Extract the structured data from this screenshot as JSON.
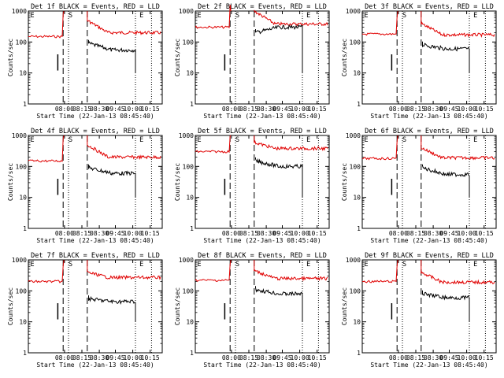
{
  "chart_data": [
    {
      "type": "line",
      "title": "Det 1f BLACK = Events, RED = LLD",
      "ylabel": "Counts/sec",
      "xlabel": "Start Time (22-Jan-13 08:45:40)",
      "yscale": "log",
      "ylim": [
        1,
        1000
      ],
      "xticks": [
        "08:00",
        "08:15",
        "08:30",
        "09:45",
        "10:00",
        "10:15"
      ],
      "yticks": [
        "1",
        "10",
        "100",
        "1000"
      ],
      "markers": [
        "E",
        "S",
        "E"
      ],
      "grid": false,
      "legend": "title",
      "series": [
        {
          "name": "BLACK = Events",
          "color": "#000000",
          "level_after_rise": 90,
          "level_end": 55
        },
        {
          "name": "RED = LLD",
          "color": "#e00000",
          "level_before": 150,
          "level_after_rise": 500,
          "level_end": 200
        }
      ]
    },
    {
      "type": "line",
      "title": "Det 2f BLACK = Events, RED = LLD",
      "ylabel": "Counts/sec",
      "xlabel": "Start Time (22-Jan-13 08:45:40)",
      "yscale": "log",
      "ylim": [
        1,
        1000
      ],
      "xticks": [
        "08:00",
        "08:15",
        "08:30",
        "09:45",
        "10:00",
        "10:15"
      ],
      "yticks": [
        "1",
        "10",
        "100",
        "1000"
      ],
      "markers": [
        "E",
        "S",
        "E"
      ],
      "grid": false,
      "legend": "title",
      "series": [
        {
          "name": "BLACK = Events",
          "color": "#000000",
          "level_after_rise": 200,
          "level_end": 300
        },
        {
          "name": "RED = LLD",
          "color": "#e00000",
          "level_before": 300,
          "level_after_rise": 1000,
          "level_end": 380
        }
      ]
    },
    {
      "type": "line",
      "title": "Det 3f BLACK = Events, RED = LLD",
      "ylabel": "Counts/sec",
      "xlabel": "Start Time (22-Jan-13 08:45:40)",
      "yscale": "log",
      "ylim": [
        1,
        1000
      ],
      "xticks": [
        "08:00",
        "08:15",
        "08:30",
        "09:45",
        "10:00",
        "10:15"
      ],
      "yticks": [
        "1",
        "10",
        "100",
        "1000"
      ],
      "markers": [
        "E",
        "S",
        "E"
      ],
      "grid": false,
      "legend": "title",
      "series": [
        {
          "name": "BLACK = Events",
          "color": "#000000",
          "level_after_rise": 80,
          "level_end": 60
        },
        {
          "name": "RED = LLD",
          "color": "#e00000",
          "level_before": 180,
          "level_after_rise": 400,
          "level_end": 170
        }
      ]
    },
    {
      "type": "line",
      "title": "Det 4f BLACK = Events, RED = LLD",
      "ylabel": "Counts/sec",
      "xlabel": "Start Time (22-Jan-13 08:45:40)",
      "yscale": "log",
      "ylim": [
        1,
        1000
      ],
      "xticks": [
        "08:00",
        "08:15",
        "08:30",
        "09:45",
        "10:00",
        "10:15"
      ],
      "yticks": [
        "1",
        "10",
        "100",
        "1000"
      ],
      "markers": [
        "E",
        "S",
        "E"
      ],
      "grid": false,
      "legend": "title",
      "series": [
        {
          "name": "BLACK = Events",
          "color": "#000000",
          "level_after_rise": 90,
          "level_end": 60
        },
        {
          "name": "RED = LLD",
          "color": "#e00000",
          "level_before": 150,
          "level_after_rise": 500,
          "level_end": 200
        }
      ]
    },
    {
      "type": "line",
      "title": "Det 5f BLACK = Events, RED = LLD",
      "ylabel": "Counts/sec",
      "xlabel": "Start Time (22-Jan-13 08:45:40)",
      "yscale": "log",
      "ylim": [
        1,
        1000
      ],
      "xticks": [
        "08:00",
        "08:15",
        "08:30",
        "09:45",
        "10:00",
        "10:15"
      ],
      "yticks": [
        "1",
        "10",
        "100",
        "1000"
      ],
      "markers": [
        "E",
        "S",
        "E"
      ],
      "grid": false,
      "legend": "title",
      "series": [
        {
          "name": "BLACK = Events",
          "color": "#000000",
          "level_after_rise": 150,
          "level_end": 100
        },
        {
          "name": "RED = LLD",
          "color": "#e00000",
          "level_before": 300,
          "level_after_rise": 600,
          "level_end": 380
        }
      ]
    },
    {
      "type": "line",
      "title": "Det 6f BLACK = Events, RED = LLD",
      "ylabel": "Counts/sec",
      "xlabel": "Start Time (22-Jan-13 08:45:40)",
      "yscale": "log",
      "ylim": [
        1,
        1000
      ],
      "xticks": [
        "08:00",
        "08:15",
        "08:30",
        "09:45",
        "10:00",
        "10:15"
      ],
      "yticks": [
        "1",
        "10",
        "100",
        "1000"
      ],
      "markers": [
        "E",
        "S",
        "E"
      ],
      "grid": false,
      "legend": "title",
      "series": [
        {
          "name": "BLACK = Events",
          "color": "#000000",
          "level_after_rise": 90,
          "level_end": 55
        },
        {
          "name": "RED = LLD",
          "color": "#e00000",
          "level_before": 180,
          "level_after_rise": 400,
          "level_end": 190
        }
      ]
    },
    {
      "type": "line",
      "title": "Det 7f BLACK = Events, RED = LLD",
      "ylabel": "Counts/sec",
      "xlabel": "Start Time (22-Jan-13 08:45:40)",
      "yscale": "log",
      "ylim": [
        1,
        1000
      ],
      "xticks": [
        "08:00",
        "08:15",
        "08:30",
        "09:45",
        "10:00",
        "10:15"
      ],
      "yticks": [
        "1",
        "10",
        "100",
        "1000"
      ],
      "markers": [
        "E",
        "S",
        "E"
      ],
      "grid": false,
      "legend": "title",
      "series": [
        {
          "name": "BLACK = Events",
          "color": "#000000",
          "level_after_rise": 55,
          "level_end": 45
        },
        {
          "name": "RED = LLD",
          "color": "#e00000",
          "level_before": 200,
          "level_after_rise": 400,
          "level_end": 270
        }
      ]
    },
    {
      "type": "line",
      "title": "Det 8f BLACK = Events, RED = LLD",
      "ylabel": "Counts/sec",
      "xlabel": "Start Time (22-Jan-13 08:45:40)",
      "yscale": "log",
      "ylim": [
        1,
        1000
      ],
      "xticks": [
        "08:00",
        "08:15",
        "08:30",
        "09:45",
        "10:00",
        "10:15"
      ],
      "yticks": [
        "1",
        "10",
        "100",
        "1000"
      ],
      "markers": [
        "E",
        "S",
        "E"
      ],
      "grid": false,
      "legend": "title",
      "series": [
        {
          "name": "BLACK = Events",
          "color": "#000000",
          "level_after_rise": 110,
          "level_end": 80
        },
        {
          "name": "RED = LLD",
          "color": "#e00000",
          "level_before": 220,
          "level_after_rise": 450,
          "level_end": 250
        }
      ]
    },
    {
      "type": "line",
      "title": "Det 9f BLACK = Events, RED = LLD",
      "ylabel": "Counts/sec",
      "xlabel": "Start Time (22-Jan-13 08:45:40)",
      "yscale": "log",
      "ylim": [
        1,
        1000
      ],
      "xticks": [
        "08:00",
        "08:15",
        "08:30",
        "09:45",
        "10:00",
        "10:15"
      ],
      "yticks": [
        "1",
        "10",
        "100",
        "1000"
      ],
      "markers": [
        "E",
        "S",
        "E"
      ],
      "grid": false,
      "legend": "title",
      "series": [
        {
          "name": "BLACK = Events",
          "color": "#000000",
          "level_after_rise": 80,
          "level_end": 60
        },
        {
          "name": "RED = LLD",
          "color": "#e00000",
          "level_before": 200,
          "level_after_rise": 400,
          "level_end": 190
        }
      ]
    }
  ]
}
